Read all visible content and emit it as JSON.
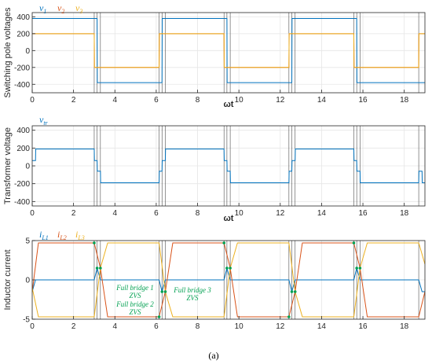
{
  "caption": "(a)",
  "colors": {
    "blue": "#0072bd",
    "orange": "#d95319",
    "yellow": "#edb120",
    "green": "#00a050"
  },
  "chart_data": [
    {
      "type": "line",
      "ylabel": "Switching pole voltages",
      "xlabel": "ωt",
      "xlim": [
        0,
        19
      ],
      "ylim": [
        -500,
        450
      ],
      "xticks": [
        0,
        2,
        4,
        6,
        8,
        10,
        12,
        14,
        16,
        18
      ],
      "yticks": [
        -400,
        -200,
        0,
        200,
        400
      ],
      "grid": true,
      "legend": [
        "v₁",
        "v₂",
        "v₃"
      ],
      "legend_subs": [
        "1",
        "2",
        "3"
      ],
      "legend_main": [
        "v",
        "v",
        "v"
      ],
      "series": [
        {
          "name": "v1",
          "color": "#0072bd",
          "x": [
            0,
            3.14,
            3.15,
            6.28,
            6.29,
            9.42,
            9.43,
            12.56,
            12.57,
            15.7,
            15.71,
            19
          ],
          "y": [
            380,
            380,
            -380,
            -380,
            380,
            380,
            -380,
            -380,
            380,
            380,
            -380,
            -380
          ]
        },
        {
          "name": "v2",
          "color": "#d95319",
          "x": [
            0,
            3.0,
            3.01,
            6.14,
            6.15,
            9.28,
            9.29,
            12.42,
            12.43,
            15.56,
            15.57,
            18.7,
            18.71,
            19
          ],
          "y": [
            200,
            200,
            -200,
            -200,
            200,
            200,
            -200,
            -200,
            200,
            200,
            -200,
            -200,
            200,
            200
          ]
        },
        {
          "name": "v3",
          "color": "#edb120",
          "x": [
            0,
            3.0,
            3.01,
            6.14,
            6.15,
            9.28,
            9.29,
            12.42,
            12.43,
            15.56,
            15.57,
            18.7,
            18.71,
            19
          ],
          "y": [
            200,
            200,
            -200,
            -200,
            200,
            200,
            -200,
            -200,
            200,
            200,
            -200,
            -200,
            200,
            200
          ]
        }
      ],
      "vlines": [
        3.0,
        3.14,
        3.3,
        6.14,
        6.28,
        6.44,
        9.28,
        9.42,
        9.58,
        12.42,
        12.56,
        12.72,
        15.56,
        15.7,
        15.86,
        18.7
      ]
    },
    {
      "type": "line",
      "ylabel": "Transformer voltage",
      "xlabel": "ωt",
      "xlim": [
        0,
        19
      ],
      "ylim": [
        -450,
        450
      ],
      "xticks": [
        0,
        2,
        4,
        6,
        8,
        10,
        12,
        14,
        16,
        18
      ],
      "yticks": [
        -400,
        -200,
        0,
        200,
        400
      ],
      "grid": true,
      "legend_main": [
        "v"
      ],
      "legend_subs": [
        "tr"
      ],
      "series": [
        {
          "name": "vtr",
          "color": "#0072bd",
          "x": [
            0,
            0.16,
            0.17,
            3.0,
            3.01,
            3.14,
            3.15,
            3.3,
            3.31,
            6.14,
            6.15,
            6.28,
            6.29,
            6.44,
            6.45,
            9.28,
            9.29,
            9.42,
            9.43,
            9.58,
            9.59,
            12.42,
            12.43,
            12.56,
            12.57,
            12.72,
            12.73,
            15.56,
            15.57,
            15.7,
            15.71,
            15.86,
            15.87,
            18.7,
            18.71,
            18.86,
            18.87,
            19
          ],
          "y": [
            60,
            60,
            190,
            190,
            60,
            60,
            -60,
            -60,
            -190,
            -190,
            -60,
            -60,
            60,
            60,
            190,
            190,
            60,
            60,
            -60,
            -60,
            -190,
            -190,
            -60,
            -60,
            60,
            60,
            190,
            190,
            60,
            60,
            -60,
            -60,
            -190,
            -190,
            -60,
            -60,
            -190,
            -190
          ]
        }
      ],
      "vlines": [
        3.0,
        3.14,
        3.3,
        6.14,
        6.28,
        6.44,
        9.28,
        9.42,
        9.58,
        12.42,
        12.56,
        12.72,
        15.56,
        15.7,
        15.86,
        18.7
      ]
    },
    {
      "type": "line",
      "ylabel": "Inductor current",
      "xlabel": "",
      "xlim": [
        0,
        19
      ],
      "ylim": [
        -5,
        5
      ],
      "xticks": [
        0,
        2,
        4,
        6,
        8,
        10,
        12,
        14,
        16,
        18
      ],
      "yticks": [
        -5,
        0,
        5
      ],
      "grid": true,
      "legend_main": [
        "i",
        "i",
        "i"
      ],
      "legend_subs": [
        "L1",
        "L2",
        "L3"
      ],
      "series": [
        {
          "name": "iL1",
          "color": "#0072bd",
          "x": [
            0,
            0.16,
            3.0,
            3.14,
            3.3,
            6.14,
            6.28,
            6.44,
            9.28,
            9.42,
            9.58,
            12.42,
            12.56,
            12.72,
            15.56,
            15.7,
            15.86,
            18.7,
            18.86,
            19
          ],
          "y": [
            -1.5,
            0,
            0,
            1.5,
            0,
            0,
            -1.5,
            0,
            0,
            1.5,
            0,
            0,
            -1.5,
            0,
            0,
            1.5,
            0,
            0,
            -1.5,
            -1.5
          ]
        },
        {
          "name": "iL2",
          "color": "#d95319",
          "x": [
            0,
            0.3,
            3.0,
            3.3,
            3.65,
            6.14,
            6.44,
            6.8,
            9.28,
            9.58,
            9.93,
            12.42,
            12.72,
            13.07,
            15.56,
            15.86,
            16.21,
            18.7,
            19
          ],
          "y": [
            -1.5,
            4.7,
            4.7,
            1.5,
            -4.7,
            -4.7,
            -1.5,
            4.7,
            4.7,
            1.5,
            -4.7,
            -4.7,
            -1.5,
            4.7,
            4.7,
            1.5,
            -4.7,
            -4.7,
            -1.5
          ]
        },
        {
          "name": "iL3",
          "color": "#edb120",
          "x": [
            0,
            0.3,
            3.0,
            3.3,
            3.65,
            6.14,
            6.44,
            6.8,
            9.28,
            9.58,
            9.93,
            12.42,
            12.72,
            13.07,
            15.56,
            15.86,
            16.21,
            18.7,
            19
          ],
          "y": [
            -1.0,
            -4.7,
            -4.7,
            1.5,
            4.7,
            4.7,
            -1.5,
            -4.7,
            -4.7,
            1.5,
            4.7,
            4.7,
            -1.5,
            -4.7,
            -4.7,
            1.5,
            4.7,
            4.7,
            2.0
          ]
        }
      ],
      "points": [
        {
          "x": 3.0,
          "y": 4.7
        },
        {
          "x": 3.14,
          "y": 1.5
        },
        {
          "x": 3.3,
          "y": 1.5
        },
        {
          "x": 6.14,
          "y": -4.7
        },
        {
          "x": 6.28,
          "y": -1.5
        },
        {
          "x": 6.44,
          "y": -1.5
        },
        {
          "x": 9.28,
          "y": 4.7
        },
        {
          "x": 9.42,
          "y": 1.5
        },
        {
          "x": 9.58,
          "y": 1.5
        },
        {
          "x": 12.42,
          "y": -4.7
        },
        {
          "x": 12.56,
          "y": -1.5
        },
        {
          "x": 12.72,
          "y": -1.5
        },
        {
          "x": 15.56,
          "y": 4.7
        },
        {
          "x": 15.7,
          "y": 1.5
        },
        {
          "x": 15.86,
          "y": 1.5
        }
      ],
      "annotations": [
        {
          "lines": [
            "Full bridge 1",
            "ZVS"
          ]
        },
        {
          "lines": [
            "Full bridge 2",
            "ZVS"
          ]
        },
        {
          "lines": [
            "Full bridge 3",
            "ZVS"
          ]
        }
      ],
      "vlines": [
        3.0,
        3.14,
        3.3,
        6.14,
        6.28,
        6.44,
        9.28,
        9.42,
        9.58,
        12.42,
        12.56,
        12.72,
        15.56,
        15.7,
        15.86,
        18.7
      ]
    }
  ]
}
